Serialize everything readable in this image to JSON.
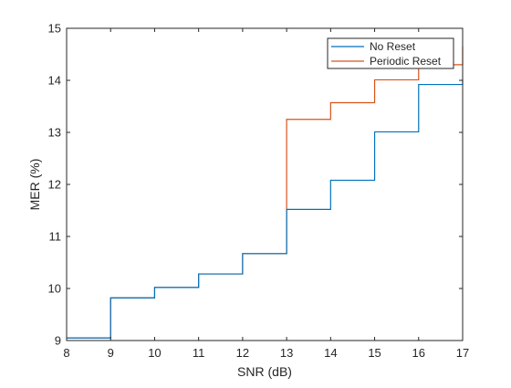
{
  "chart_data": {
    "type": "line",
    "step": true,
    "title": "",
    "xlabel": "SNR (dB)",
    "ylabel": "MER (%)",
    "xlim": [
      8,
      17
    ],
    "ylim": [
      9,
      15
    ],
    "xticks": [
      8,
      9,
      10,
      11,
      12,
      13,
      14,
      15,
      16,
      17
    ],
    "yticks": [
      9,
      10,
      11,
      12,
      13,
      14,
      15
    ],
    "grid": false,
    "legend_position": "top-right",
    "series": [
      {
        "name": "No Reset",
        "color": "#0072BD",
        "x": [
          8,
          9,
          10,
          11,
          12,
          13,
          14,
          15,
          16,
          17
        ],
        "y": [
          9.05,
          9.82,
          10.02,
          10.28,
          10.67,
          11.52,
          12.08,
          13.01,
          13.92,
          14.02
        ]
      },
      {
        "name": "Periodic Reset",
        "color": "#D95319",
        "x": [
          8,
          9,
          10,
          11,
          12,
          13,
          14,
          15,
          16,
          17
        ],
        "y": [
          9.05,
          9.82,
          10.02,
          10.28,
          10.67,
          13.25,
          13.57,
          14.01,
          14.3,
          14.65
        ]
      }
    ]
  }
}
